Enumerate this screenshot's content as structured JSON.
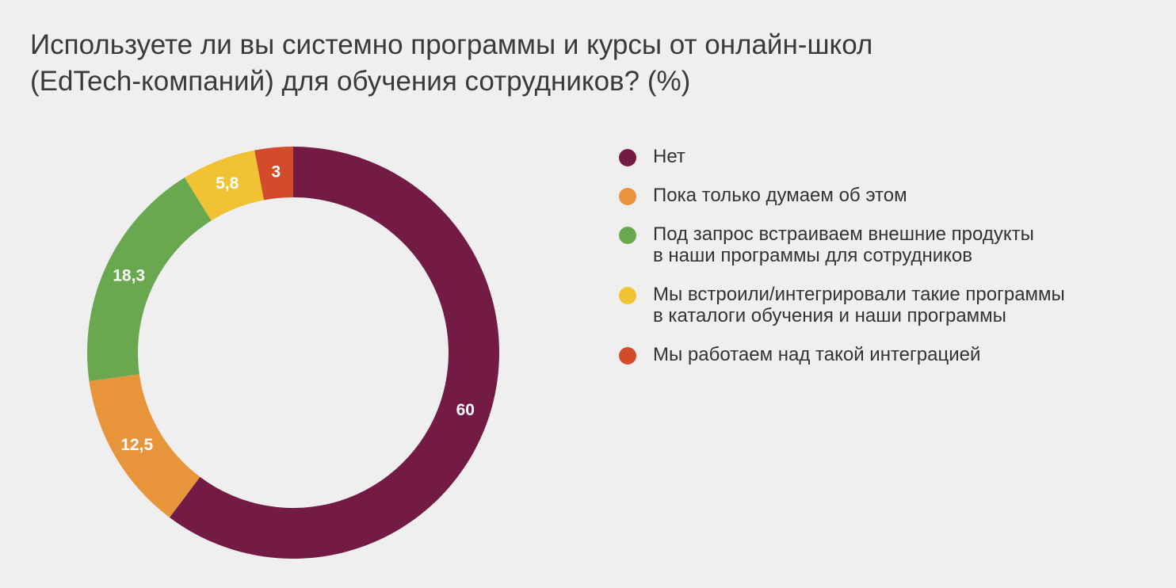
{
  "title_lines": [
    "Используете ли вы системно программы и курсы от онлайн-школ",
    "(EdTech-компаний) для обучения сотрудников? (%)"
  ],
  "chart_data": {
    "type": "pie",
    "donut": true,
    "title": "Используете ли вы системно программы и курсы от онлайн-школ (EdTech-компаний) для обучения сотрудников? (%)",
    "legend_position": "right",
    "slices": [
      {
        "name": "Нет",
        "value": 60,
        "label": "60",
        "color": "#741b45"
      },
      {
        "name": "Пока только думаем об этом",
        "value": 12.5,
        "label": "12,5",
        "color": "#e8943b"
      },
      {
        "name": "Под запрос встраиваем внешние продукты в наши программы для сотрудников",
        "value": 18.3,
        "label": "18,3",
        "color": "#6aa84f"
      },
      {
        "name": "Мы встроили/интегрировали такие программы в каталоги обучения и наши программы",
        "value": 5.8,
        "label": "5,8",
        "color": "#f1c232"
      },
      {
        "name": "Мы работаем над такой интеграцией",
        "value": 3,
        "label": "3",
        "color": "#d24b2a"
      }
    ]
  },
  "legend": [
    {
      "lines": [
        "Нет"
      ],
      "color": "#741b45"
    },
    {
      "lines": [
        "Пока только думаем об этом"
      ],
      "color": "#e8943b"
    },
    {
      "lines": [
        "Под запрос встраиваем внешние продукты",
        "в наши программы для сотрудников"
      ],
      "color": "#6aa84f"
    },
    {
      "lines": [
        "Мы встроили/интегрировали такие программы",
        "в каталоги обучения и наши программы"
      ],
      "color": "#f1c232"
    },
    {
      "lines": [
        "Мы работаем над такой интеграцией"
      ],
      "color": "#d24b2a"
    }
  ]
}
